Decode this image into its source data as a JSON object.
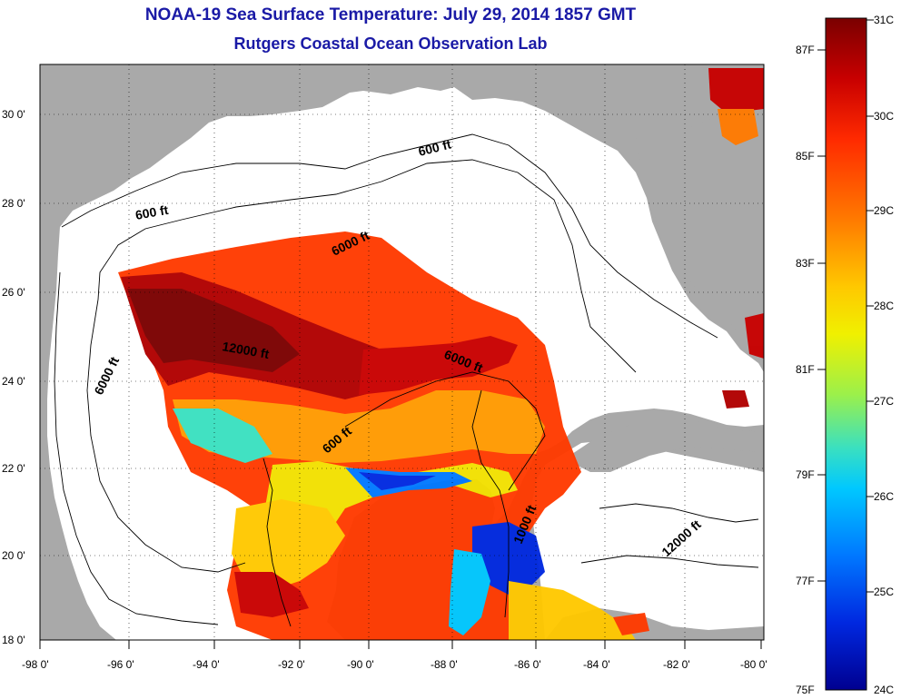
{
  "title": {
    "line1": "NOAA-19 Sea Surface Temperature:  July 29, 2014 1857 GMT",
    "line2": "Rutgers Coastal Ocean Observation Lab"
  },
  "axes": {
    "x_ticks": [
      "-98 0'",
      "-96 0'",
      "-94 0'",
      "-92 0'",
      "-90 0'",
      "-88 0'",
      "-86 0'",
      "-84 0'",
      "-82 0'",
      "-80 0'"
    ],
    "y_ticks": [
      "30 0'",
      "28 0'",
      "26 0'",
      "24 0'",
      "22 0'",
      "20 0'",
      "18 0'"
    ]
  },
  "contour_labels": [
    "600 ft",
    "600 ft",
    "6000 ft",
    "6000 ft",
    "12000 ft",
    "6000 ft",
    "600 ft",
    "1000 ft",
    "12000 ft"
  ],
  "colorbar": {
    "celsius": [
      "31C",
      "30C",
      "29C",
      "28C",
      "27C",
      "26C",
      "25C",
      "24C"
    ],
    "fahrenheit": [
      "87F",
      "85F",
      "83F",
      "81F",
      "79F",
      "77F",
      "75F"
    ],
    "colors": [
      "#7a0000",
      "#c80000",
      "#ff2a00",
      "#ff7a00",
      "#ffc800",
      "#f0f000",
      "#9cf04a",
      "#3ae0c0",
      "#00c8ff",
      "#0078ff",
      "#0028e0",
      "#000090"
    ]
  }
}
